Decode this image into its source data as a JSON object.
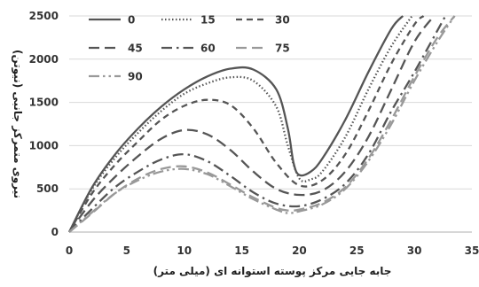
{
  "chart_data": {
    "type": "line",
    "title": "",
    "xlabel": "جابه جایی مرکز پوسته استوانه ای (میلی متر)",
    "ylabel": "نیروی متمرکز جانبی (نیوتن)",
    "xlim": [
      0,
      35
    ],
    "ylim": [
      0,
      2500
    ],
    "x_ticks": [
      "0",
      "5",
      "10",
      "15",
      "20",
      "25",
      "30",
      "35"
    ],
    "y_ticks": [
      "0",
      "500",
      "1000",
      "1500",
      "2000",
      "2500"
    ],
    "grid": "horizontal",
    "legend": "top-left",
    "series": [
      {
        "name": "0",
        "color": "#555555",
        "dash": "solid",
        "x": [
          0,
          2,
          4,
          6,
          8,
          10,
          12,
          14,
          16,
          18,
          19,
          19.5,
          20,
          21,
          22,
          24,
          26,
          28,
          29
        ],
        "y": [
          0,
          520,
          900,
          1200,
          1450,
          1650,
          1800,
          1890,
          1880,
          1650,
          1200,
          800,
          660,
          700,
          850,
          1300,
          1850,
          2350,
          2500
        ]
      },
      {
        "name": "15",
        "color": "#555555",
        "dash": "dotted",
        "x": [
          0,
          2,
          4,
          6,
          8,
          10,
          12,
          14,
          16,
          18,
          19,
          20,
          21,
          22,
          24,
          26,
          28,
          29.8
        ],
        "y": [
          0,
          500,
          860,
          1150,
          1400,
          1600,
          1720,
          1790,
          1750,
          1450,
          1000,
          620,
          610,
          700,
          1100,
          1650,
          2150,
          2500
        ]
      },
      {
        "name": "30",
        "color": "#555555",
        "dash": "dash",
        "x": [
          0,
          2,
          4,
          6,
          8,
          10,
          12,
          14,
          16,
          18,
          20,
          22,
          24,
          26,
          28,
          30,
          30.8
        ],
        "y": [
          0,
          450,
          780,
          1050,
          1300,
          1460,
          1530,
          1470,
          1200,
          800,
          540,
          600,
          900,
          1400,
          1950,
          2400,
          2500
        ]
      },
      {
        "name": "45",
        "color": "#555555",
        "dash": "longdash",
        "x": [
          0,
          2,
          4,
          6,
          8,
          10,
          12,
          14,
          16,
          18,
          20,
          22,
          24,
          26,
          28,
          30,
          31.7
        ],
        "y": [
          0,
          360,
          640,
          880,
          1080,
          1180,
          1130,
          950,
          700,
          500,
          430,
          480,
          700,
          1100,
          1650,
          2200,
          2500
        ]
      },
      {
        "name": "60",
        "color": "#555555",
        "dash": "dashdot",
        "x": [
          0,
          2,
          4,
          6,
          8,
          10,
          12,
          14,
          16,
          18,
          20,
          22,
          24,
          26,
          28,
          30,
          32.7
        ],
        "y": [
          0,
          270,
          520,
          700,
          840,
          900,
          820,
          650,
          460,
          330,
          300,
          380,
          560,
          900,
          1400,
          1850,
          2500
        ]
      },
      {
        "name": "75",
        "color": "#999999",
        "dash": "longdash",
        "x": [
          0,
          2,
          4,
          6,
          8,
          10,
          12,
          14,
          16,
          18,
          19,
          20,
          22,
          24,
          26,
          28,
          30,
          32,
          33.5
        ],
        "y": [
          0,
          220,
          450,
          620,
          730,
          760,
          690,
          550,
          400,
          280,
          250,
          260,
          340,
          520,
          850,
          1300,
          1800,
          2250,
          2500
        ]
      },
      {
        "name": "90",
        "color": "#999999",
        "dash": "dashdotdot",
        "x": [
          0,
          2,
          4,
          6,
          8,
          10,
          12,
          14,
          16,
          18,
          19,
          20,
          22,
          24,
          26,
          28,
          30,
          32,
          33.5
        ],
        "y": [
          0,
          230,
          450,
          600,
          700,
          730,
          670,
          530,
          380,
          260,
          220,
          240,
          320,
          500,
          820,
          1250,
          1750,
          2200,
          2500
        ]
      }
    ]
  }
}
